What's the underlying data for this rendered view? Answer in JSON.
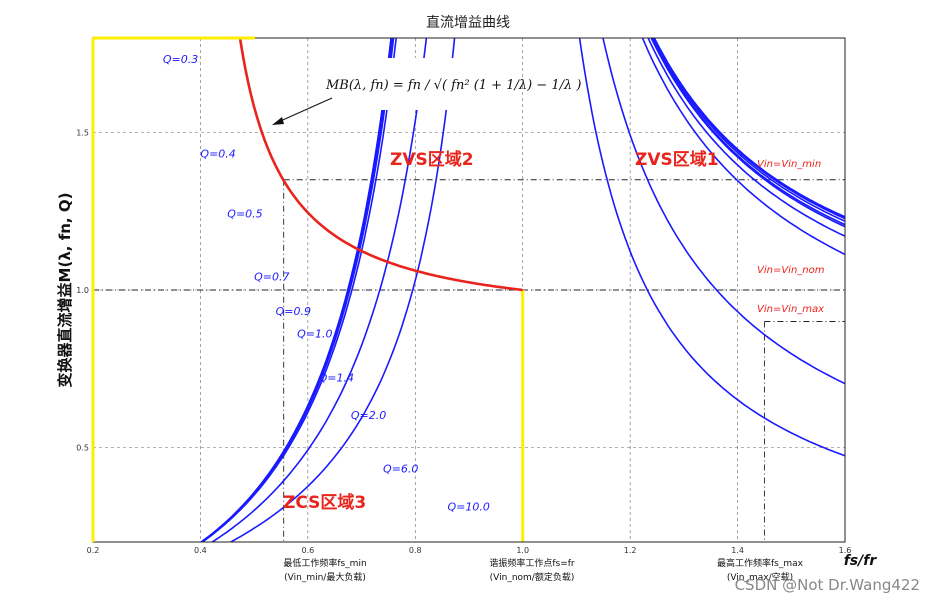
{
  "chart_data": {
    "type": "line",
    "title": "直流增益曲线",
    "xlabel": "fs/fr",
    "ylabel": "变换器直流增益M(λ, fn, Q)",
    "xlim": [
      0.2,
      1.6
    ],
    "ylim": [
      0.2,
      1.8
    ],
    "grid": true,
    "x_ticks": [
      "0.2",
      "0.4",
      "0.6",
      "0.8",
      "1.0",
      "1.2",
      "1.4",
      "1.6"
    ],
    "y_ticks": [
      "0.5",
      "1.0",
      "1.5"
    ],
    "lambda": 5,
    "series": [
      {
        "name": "Q=0.3",
        "q": 0.3
      },
      {
        "name": "Q=0.4",
        "q": 0.4
      },
      {
        "name": "Q=0.5",
        "q": 0.5
      },
      {
        "name": "Q=0.7",
        "q": 0.7
      },
      {
        "name": "Q=0.9",
        "q": 0.9
      },
      {
        "name": "Q=1.0",
        "q": 1.0
      },
      {
        "name": "Q=1.4",
        "q": 1.4
      },
      {
        "name": "Q=2.0",
        "q": 2.0
      },
      {
        "name": "Q=6.0",
        "q": 6.0
      },
      {
        "name": "Q=10.0",
        "q": 10.0
      }
    ],
    "boundary_curve": "MB(λ, fn)",
    "annotations": {
      "formula": "MB(λ, fn) = fn / √( fn² (1 + 1/λ) − 1/λ )",
      "regions": [
        "ZVS区域1",
        "ZVS区域2",
        "ZCS区域3"
      ],
      "vin_lines": [
        {
          "label": "Vin=Vin_min",
          "y": 1.35
        },
        {
          "label": "Vin=Vin_nom",
          "y": 1.0
        },
        {
          "label": "Vin=Vin_max",
          "y": 0.9
        }
      ],
      "freq_notes": [
        {
          "line1": "最低工作频率fs_min",
          "line2": "(Vin_min/最大负载)",
          "x": 0.555
        },
        {
          "line1": "谐振频率工作点fs=fr",
          "line2": "(Vin_nom/额定负载)",
          "x": 1.0
        },
        {
          "line1": "最高工作频率fs_max",
          "line2": "(Vin_max/空载)",
          "x": 1.45
        }
      ]
    }
  },
  "colors": {
    "curves": "#1a1aff",
    "boundary": "#e8241c",
    "frame": "#ffee00",
    "grid": "#666666",
    "resonance_line": "#ffee00"
  },
  "watermark": "CSDN @Not Dr.Wang422"
}
